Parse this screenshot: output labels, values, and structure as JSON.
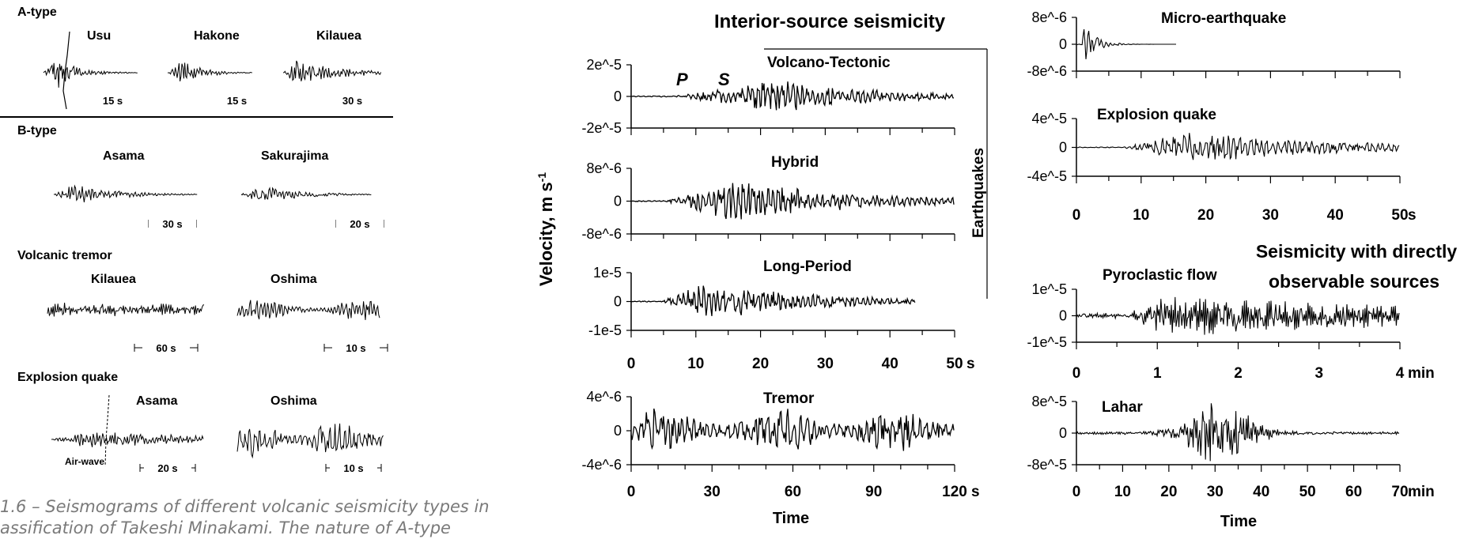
{
  "left_panel": {
    "sections": [
      {
        "title": "A-type",
        "stations": [
          {
            "name": "Usu",
            "scale": "15 s"
          },
          {
            "name": "Hakone",
            "scale": "15 s"
          },
          {
            "name": "Kilauea",
            "scale": "30 s"
          }
        ]
      },
      {
        "title": "B-type",
        "stations": [
          {
            "name": "Asama",
            "scale": "30 s"
          },
          {
            "name": "Sakurajima",
            "scale": "20 s"
          }
        ]
      },
      {
        "title": "Volcanic tremor",
        "stations": [
          {
            "name": "Kilauea",
            "scale": "60 s"
          },
          {
            "name": "Oshima",
            "scale": "10 s"
          }
        ]
      },
      {
        "title": "Explosion quake",
        "stations": [
          {
            "name": "Asama",
            "scale": "20 s"
          },
          {
            "name": "Oshima",
            "scale": "10 s"
          }
        ],
        "annotation": "Air-wave"
      }
    ]
  },
  "interior": {
    "title": "Interior-source seismicity",
    "ylabel": "Velocity, m s",
    "ylabel_sup": "-1",
    "group_label": "Earthquakes",
    "phase_labels": [
      "P",
      "S"
    ],
    "panels": [
      {
        "name": "Volcano-Tectonic",
        "yticks": [
          "2e^-5",
          "0",
          "-2e^-5"
        ]
      },
      {
        "name": "Hybrid",
        "yticks": [
          "8e^-6",
          "0",
          "-8e^-6"
        ]
      },
      {
        "name": "Long-Period",
        "yticks": [
          "1e-5",
          "0",
          "-1e-5"
        ]
      }
    ],
    "xticks": [
      "0",
      "10",
      "20",
      "30",
      "40",
      "50"
    ],
    "xunit": "s",
    "tremor": {
      "name": "Tremor",
      "yticks": [
        "4e^-6",
        "0",
        "-4e^-6"
      ],
      "xticks": [
        "0",
        "30",
        "60",
        "90",
        "120"
      ],
      "xunit": "s",
      "xlabel": "Time"
    }
  },
  "right": {
    "micro": {
      "name": "Micro-earthquake",
      "yticks": [
        "8e^-6",
        "0",
        "-8e^-6"
      ]
    },
    "explosion": {
      "name": "Explosion quake",
      "yticks": [
        "4e^-5",
        "0",
        "-4e^-5"
      ],
      "xticks": [
        "0",
        "10",
        "20",
        "30",
        "40",
        "50"
      ],
      "xunit": "s"
    },
    "direct_title": [
      "Seismicity with directly",
      "observable sources"
    ],
    "pyroclastic": {
      "name": "Pyroclastic flow",
      "yticks": [
        "1e^-5",
        "0",
        "-1e^-5"
      ],
      "xticks": [
        "0",
        "1",
        "2",
        "3",
        "4"
      ],
      "xunit": "min"
    },
    "lahar": {
      "name": "Lahar",
      "yticks": [
        "8e^-5",
        "0",
        "-8e^-5"
      ],
      "xticks": [
        "0",
        "10",
        "20",
        "30",
        "40",
        "50",
        "60",
        "70"
      ],
      "xunit": "min",
      "xlabel": "Time"
    }
  },
  "caption": [
    "1.6 – Seismograms of different volcanic seismicity types in",
    "assification of Takeshi Minakami. The nature of A-type"
  ]
}
